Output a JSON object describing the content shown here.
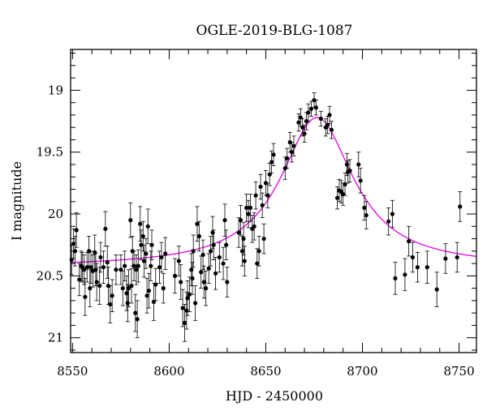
{
  "chart_data": {
    "type": "scatter",
    "title": "OGLE-2019-BLG-1087",
    "xlabel": "HJD - 2450000",
    "ylabel": "I magnitude",
    "xlim": [
      8549,
      8759
    ],
    "ylim": [
      21.12,
      18.67
    ],
    "y_inverted": true,
    "x_ticks": [
      8550,
      8600,
      8650,
      8700,
      8750
    ],
    "y_ticks": [
      19,
      19.5,
      20,
      20.5,
      21
    ],
    "x_tick_labels": [
      "8550",
      "8600",
      "8650",
      "8700",
      "8750"
    ],
    "y_tick_labels": [
      "19",
      "19.5",
      "20",
      "20.5",
      "21"
    ],
    "grid": false,
    "marker_color": "#000000",
    "model_color": "#e600e6",
    "series": [
      {
        "kind": "data_with_errorbars",
        "points": [
          [
            8549.5,
            20.37,
            0.12
          ],
          [
            8550.5,
            20.24,
            0.12
          ],
          [
            8551.3,
            20.3,
            0.12
          ],
          [
            8552.0,
            20.13,
            0.14
          ],
          [
            8553.5,
            20.53,
            0.13
          ],
          [
            8554.5,
            20.42,
            0.12
          ],
          [
            8555.0,
            20.43,
            0.12
          ],
          [
            8556.0,
            20.45,
            0.12
          ],
          [
            8556.5,
            20.67,
            0.15
          ],
          [
            8557.5,
            20.43,
            0.12
          ],
          [
            8558.5,
            20.3,
            0.12
          ],
          [
            8559.0,
            20.6,
            0.15
          ],
          [
            8559.5,
            20.43,
            0.13
          ],
          [
            8560.5,
            20.46,
            0.13
          ],
          [
            8561.5,
            20.31,
            0.14
          ],
          [
            8562.0,
            20.45,
            0.13
          ],
          [
            8562.5,
            20.55,
            0.15
          ],
          [
            8564.0,
            20.58,
            0.15
          ],
          [
            8564.5,
            20.35,
            0.12
          ],
          [
            8566.0,
            20.43,
            0.13
          ],
          [
            8567.0,
            20.12,
            0.14
          ],
          [
            8568.0,
            20.39,
            0.13
          ],
          [
            8568.5,
            20.58,
            0.15
          ],
          [
            8569.5,
            20.73,
            0.15
          ],
          [
            8570.5,
            20.66,
            0.13
          ],
          [
            8572.5,
            20.45,
            0.12
          ],
          [
            8575.0,
            20.45,
            0.12
          ],
          [
            8576.0,
            20.6,
            0.14
          ],
          [
            8577.0,
            20.42,
            0.12
          ],
          [
            8578.0,
            20.64,
            0.14
          ],
          [
            8578.5,
            20.72,
            0.15
          ],
          [
            8579.0,
            20.6,
            0.15
          ],
          [
            8580.0,
            20.05,
            0.14
          ],
          [
            8580.5,
            20.58,
            0.14
          ],
          [
            8581.0,
            20.3,
            0.12
          ],
          [
            8581.8,
            20.42,
            0.12
          ],
          [
            8582.5,
            20.8,
            0.15
          ],
          [
            8583.0,
            20.45,
            0.12
          ],
          [
            8583.5,
            20.85,
            0.15
          ],
          [
            8584.0,
            20.42,
            0.13
          ],
          [
            8585.0,
            20.08,
            0.14
          ],
          [
            8585.5,
            20.25,
            0.12
          ],
          [
            8586.5,
            20.18,
            0.12
          ],
          [
            8587.0,
            20.38,
            0.13
          ],
          [
            8588.0,
            20.32,
            0.12
          ],
          [
            8588.5,
            20.66,
            0.14
          ],
          [
            8589.0,
            20.1,
            0.14
          ],
          [
            8589.5,
            20.62,
            0.14
          ],
          [
            8590.5,
            20.42,
            0.12
          ],
          [
            8591.0,
            20.25,
            0.12
          ],
          [
            8592.0,
            20.71,
            0.15
          ],
          [
            8593.0,
            20.57,
            0.13
          ],
          [
            8595.0,
            20.43,
            0.13
          ],
          [
            8596.0,
            20.35,
            0.12
          ],
          [
            8597.0,
            20.6,
            0.12
          ],
          [
            8598.0,
            20.32,
            0.13
          ],
          [
            8603.0,
            20.5,
            0.14
          ],
          [
            8605.0,
            20.38,
            0.12
          ],
          [
            8606.0,
            20.55,
            0.14
          ],
          [
            8607.0,
            20.76,
            0.15
          ],
          [
            8608.0,
            20.88,
            0.15
          ],
          [
            8609.0,
            20.78,
            0.15
          ],
          [
            8609.5,
            20.68,
            0.14
          ],
          [
            8610.5,
            20.65,
            0.14
          ],
          [
            8611.5,
            20.45,
            0.13
          ],
          [
            8612.0,
            20.52,
            0.13
          ],
          [
            8612.5,
            20.3,
            0.13
          ],
          [
            8613.5,
            20.72,
            0.14
          ],
          [
            8614.5,
            20.08,
            0.14
          ],
          [
            8615.5,
            20.18,
            0.12
          ],
          [
            8616.5,
            20.47,
            0.13
          ],
          [
            8617.5,
            20.33,
            0.12
          ],
          [
            8618.0,
            20.55,
            0.13
          ],
          [
            8619.0,
            20.6,
            0.14
          ],
          [
            8620.5,
            20.44,
            0.12
          ],
          [
            8621.5,
            20.3,
            0.12
          ],
          [
            8622.5,
            20.15,
            0.13
          ],
          [
            8623.0,
            20.25,
            0.12
          ],
          [
            8624.0,
            20.48,
            0.13
          ],
          [
            8626.0,
            20.35,
            0.12
          ],
          [
            8628.0,
            20.4,
            0.13
          ],
          [
            8628.8,
            20.05,
            0.13
          ],
          [
            8629.5,
            20.25,
            0.12
          ],
          [
            8630.0,
            20.55,
            0.12
          ],
          [
            8636.0,
            20.15,
            0.12
          ],
          [
            8637.0,
            20.05,
            0.12
          ],
          [
            8637.8,
            20.3,
            0.12
          ],
          [
            8638.5,
            20.2,
            0.13
          ],
          [
            8639.0,
            20.38,
            0.12
          ],
          [
            8640.0,
            19.95,
            0.11
          ],
          [
            8641.0,
            20.0,
            0.11
          ],
          [
            8642.0,
            19.95,
            0.11
          ],
          [
            8643.0,
            20.12,
            0.11
          ],
          [
            8644.0,
            20.1,
            0.11
          ],
          [
            8644.8,
            19.85,
            0.11
          ],
          [
            8645.5,
            20.4,
            0.12
          ],
          [
            8646.5,
            20.3,
            0.12
          ],
          [
            8647.3,
            19.78,
            0.1
          ],
          [
            8648.2,
            19.93,
            0.1
          ],
          [
            8649.0,
            20.2,
            0.12
          ],
          [
            8650.0,
            19.75,
            0.1
          ],
          [
            8651.0,
            19.85,
            0.1
          ],
          [
            8652.0,
            19.68,
            0.09
          ],
          [
            8653.0,
            19.58,
            0.09
          ],
          [
            8654.0,
            19.52,
            0.09
          ],
          [
            8660.0,
            19.63,
            0.09
          ],
          [
            8661.0,
            19.55,
            0.08
          ],
          [
            8662.5,
            19.42,
            0.08
          ],
          [
            8663.5,
            19.5,
            0.08
          ],
          [
            8664.5,
            19.45,
            0.08
          ],
          [
            8667.0,
            19.26,
            0.07
          ],
          [
            8668.0,
            19.22,
            0.07
          ],
          [
            8669.0,
            19.3,
            0.07
          ],
          [
            8670.0,
            19.35,
            0.07
          ],
          [
            8671.0,
            19.25,
            0.07
          ],
          [
            8672.0,
            19.18,
            0.07
          ],
          [
            8673.5,
            19.15,
            0.06
          ],
          [
            8675.0,
            19.08,
            0.06
          ],
          [
            8676.0,
            19.14,
            0.06
          ],
          [
            8678.5,
            19.23,
            0.06
          ],
          [
            8681.0,
            19.3,
            0.07
          ],
          [
            8682.0,
            19.28,
            0.07
          ],
          [
            8683.0,
            19.2,
            0.07
          ],
          [
            8684.0,
            19.32,
            0.07
          ],
          [
            8687.0,
            19.87,
            0.09
          ],
          [
            8688.0,
            19.81,
            0.09
          ],
          [
            8689.0,
            19.82,
            0.09
          ],
          [
            8690.0,
            19.84,
            0.09
          ],
          [
            8691.0,
            19.76,
            0.09
          ],
          [
            8692.0,
            19.6,
            0.09
          ],
          [
            8692.5,
            19.66,
            0.09
          ],
          [
            8693.5,
            19.65,
            0.09
          ],
          [
            8698.0,
            19.6,
            0.1
          ],
          [
            8699.0,
            19.73,
            0.1
          ],
          [
            8701.0,
            19.95,
            0.1
          ],
          [
            8702.0,
            20.01,
            0.11
          ],
          [
            8713.5,
            20.06,
            0.11
          ],
          [
            8715.5,
            20.0,
            0.11
          ],
          [
            8717.0,
            20.52,
            0.13
          ],
          [
            8722.0,
            20.49,
            0.13
          ],
          [
            8724.0,
            20.22,
            0.12
          ],
          [
            8726.0,
            20.35,
            0.12
          ],
          [
            8728.5,
            20.43,
            0.12
          ],
          [
            8733.5,
            20.43,
            0.13
          ],
          [
            8738.5,
            20.61,
            0.14
          ],
          [
            8743.0,
            20.36,
            0.12
          ],
          [
            8749.0,
            20.35,
            0.12
          ],
          [
            8750.5,
            19.94,
            0.12
          ]
        ]
      },
      {
        "kind": "model_curve",
        "t0": 8676.5,
        "peak_mag": 19.22,
        "base_mag": 20.43,
        "width_days": 23
      }
    ]
  }
}
